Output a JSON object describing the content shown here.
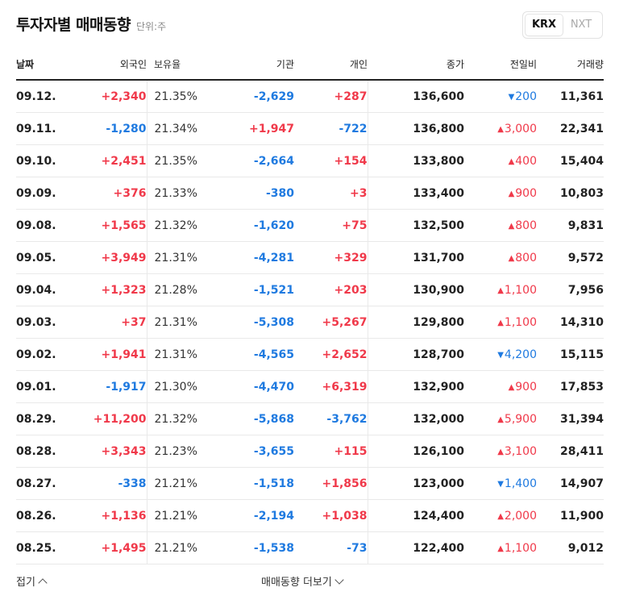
{
  "header": {
    "title": "투자자별 매매동향",
    "unit": "단위:주"
  },
  "market_toggle": {
    "options": [
      "KRX",
      "NXT"
    ],
    "selected": "KRX"
  },
  "columns": [
    "날짜",
    "외국인",
    "보유율",
    "기관",
    "개인",
    "종가",
    "전일비",
    "거래량"
  ],
  "rows": [
    {
      "date": "09.12.",
      "foreign": "+2,340",
      "hold": "21.35%",
      "inst": "-2,629",
      "indiv": "+287",
      "close": "136,600",
      "change": "200",
      "change_dir": "down",
      "volume": "11,361"
    },
    {
      "date": "09.11.",
      "foreign": "-1,280",
      "hold": "21.34%",
      "inst": "+1,947",
      "indiv": "-722",
      "close": "136,800",
      "change": "3,000",
      "change_dir": "up",
      "volume": "22,341"
    },
    {
      "date": "09.10.",
      "foreign": "+2,451",
      "hold": "21.35%",
      "inst": "-2,664",
      "indiv": "+154",
      "close": "133,800",
      "change": "400",
      "change_dir": "up",
      "volume": "15,404"
    },
    {
      "date": "09.09.",
      "foreign": "+376",
      "hold": "21.33%",
      "inst": "-380",
      "indiv": "+3",
      "close": "133,400",
      "change": "900",
      "change_dir": "up",
      "volume": "10,803"
    },
    {
      "date": "09.08.",
      "foreign": "+1,565",
      "hold": "21.32%",
      "inst": "-1,620",
      "indiv": "+75",
      "close": "132,500",
      "change": "800",
      "change_dir": "up",
      "volume": "9,831"
    },
    {
      "date": "09.05.",
      "foreign": "+3,949",
      "hold": "21.31%",
      "inst": "-4,281",
      "indiv": "+329",
      "close": "131,700",
      "change": "800",
      "change_dir": "up",
      "volume": "9,572"
    },
    {
      "date": "09.04.",
      "foreign": "+1,323",
      "hold": "21.28%",
      "inst": "-1,521",
      "indiv": "+203",
      "close": "130,900",
      "change": "1,100",
      "change_dir": "up",
      "volume": "7,956"
    },
    {
      "date": "09.03.",
      "foreign": "+37",
      "hold": "21.31%",
      "inst": "-5,308",
      "indiv": "+5,267",
      "close": "129,800",
      "change": "1,100",
      "change_dir": "up",
      "volume": "14,310"
    },
    {
      "date": "09.02.",
      "foreign": "+1,941",
      "hold": "21.31%",
      "inst": "-4,565",
      "indiv": "+2,652",
      "close": "128,700",
      "change": "4,200",
      "change_dir": "down",
      "volume": "15,115"
    },
    {
      "date": "09.01.",
      "foreign": "-1,917",
      "hold": "21.30%",
      "inst": "-4,470",
      "indiv": "+6,319",
      "close": "132,900",
      "change": "900",
      "change_dir": "up",
      "volume": "17,853"
    },
    {
      "date": "08.29.",
      "foreign": "+11,200",
      "hold": "21.32%",
      "inst": "-5,868",
      "indiv": "-3,762",
      "close": "132,000",
      "change": "5,900",
      "change_dir": "up",
      "volume": "31,394"
    },
    {
      "date": "08.28.",
      "foreign": "+3,343",
      "hold": "21.23%",
      "inst": "-3,655",
      "indiv": "+115",
      "close": "126,100",
      "change": "3,100",
      "change_dir": "up",
      "volume": "28,411"
    },
    {
      "date": "08.27.",
      "foreign": "-338",
      "hold": "21.21%",
      "inst": "-1,518",
      "indiv": "+1,856",
      "close": "123,000",
      "change": "1,400",
      "change_dir": "down",
      "volume": "14,907"
    },
    {
      "date": "08.26.",
      "foreign": "+1,136",
      "hold": "21.21%",
      "inst": "-2,194",
      "indiv": "+1,038",
      "close": "124,400",
      "change": "2,000",
      "change_dir": "up",
      "volume": "11,900"
    },
    {
      "date": "08.25.",
      "foreign": "+1,495",
      "hold": "21.21%",
      "inst": "-1,538",
      "indiv": "-73",
      "close": "122,400",
      "change": "1,100",
      "change_dir": "up",
      "volume": "9,012"
    }
  ],
  "footer": {
    "fold_label": "접기",
    "more_label": "매매동향 더보기"
  },
  "colors": {
    "up": "#f0394a",
    "down": "#1f7ae0"
  },
  "icons": {
    "up": "triangle-up-icon",
    "down": "triangle-down-icon",
    "fold": "chevron-up-icon",
    "more": "chevron-down-icon"
  }
}
